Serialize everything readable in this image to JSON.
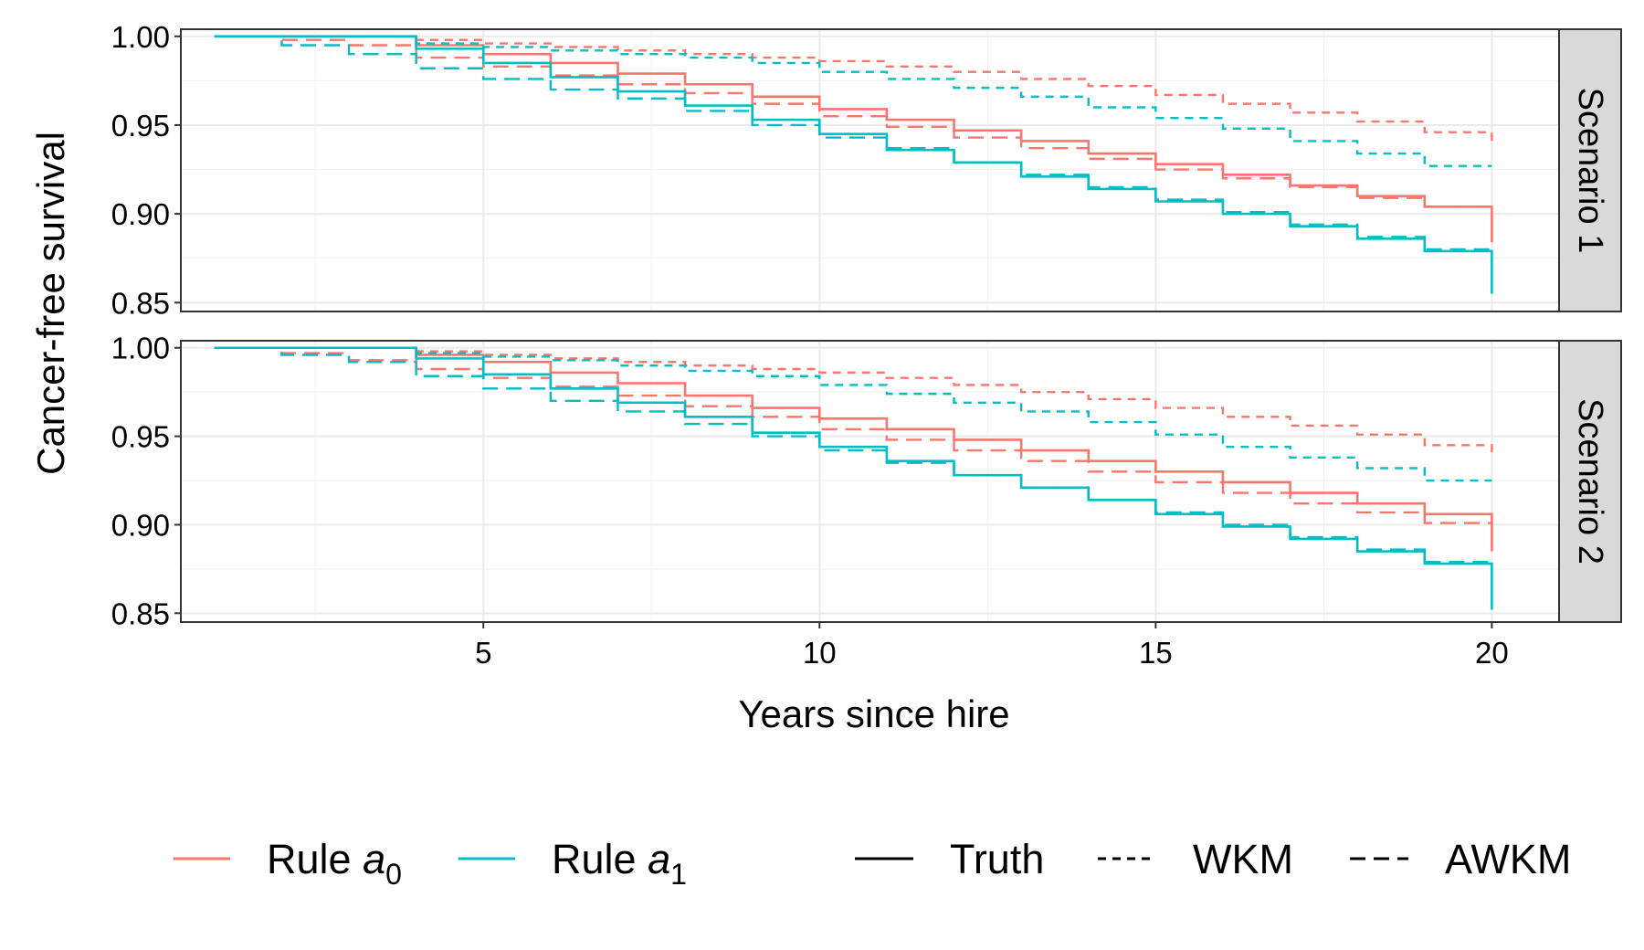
{
  "chart_data": {
    "type": "line",
    "step": true,
    "xlabel": "Years since hire",
    "ylabel": "Cancer-free survival",
    "xlim": [
      0.5,
      21
    ],
    "ylim": [
      0.845,
      1.004
    ],
    "xticks": [
      5,
      10,
      15,
      20
    ],
    "yticks": [
      0.85,
      0.9,
      0.95,
      1.0
    ],
    "ytick_labels": [
      "0.85",
      "0.90",
      "0.95",
      "1.00"
    ],
    "grid": true,
    "colors": {
      "rule_a0": "#F8766D",
      "rule_a1": "#00BFC4"
    },
    "x": [
      1,
      2,
      3,
      4,
      5,
      6,
      7,
      8,
      9,
      10,
      11,
      12,
      13,
      14,
      15,
      16,
      17,
      18,
      19,
      20
    ],
    "legend": {
      "position": "bottom",
      "color_items": [
        {
          "key": "rule_a0",
          "label_base": "Rule ",
          "label_var": "a",
          "label_sub": "0"
        },
        {
          "key": "rule_a1",
          "label_base": "Rule ",
          "label_var": "a",
          "label_sub": "1"
        }
      ],
      "linetype_items": [
        {
          "key": "truth",
          "label": "Truth",
          "dash": "solid"
        },
        {
          "key": "wkm",
          "label": "WKM",
          "dash": "dotted"
        },
        {
          "key": "awkm",
          "label": "AWKM",
          "dash": "dashed"
        }
      ]
    },
    "panels": [
      {
        "label": "Scenario 1",
        "end_values": {
          "rule_a0_truth": 0.884,
          "rule_a1_truth": 0.855
        },
        "series": [
          {
            "rule": "rule_a0",
            "method": "truth",
            "values": [
              1.0,
              1.0,
              1.0,
              0.995,
              0.99,
              0.985,
              0.979,
              0.973,
              0.966,
              0.959,
              0.953,
              0.947,
              0.941,
              0.934,
              0.928,
              0.922,
              0.916,
              0.91,
              0.904,
              0.904
            ]
          },
          {
            "rule": "rule_a0",
            "method": "wkm",
            "values": [
              1.0,
              1.0,
              1.0,
              0.998,
              0.996,
              0.994,
              0.992,
              0.99,
              0.988,
              0.986,
              0.983,
              0.98,
              0.976,
              0.972,
              0.967,
              0.962,
              0.957,
              0.952,
              0.946,
              0.941
            ]
          },
          {
            "rule": "rule_a0",
            "method": "awkm",
            "values": [
              1.0,
              0.998,
              0.995,
              0.988,
              0.983,
              0.978,
              0.973,
              0.968,
              0.962,
              0.955,
              0.949,
              0.943,
              0.937,
              0.931,
              0.925,
              0.92,
              0.915,
              0.909,
              0.904,
              0.903
            ]
          },
          {
            "rule": "rule_a1",
            "method": "truth",
            "values": [
              1.0,
              1.0,
              1.0,
              0.993,
              0.985,
              0.977,
              0.969,
              0.961,
              0.953,
              0.945,
              0.936,
              0.929,
              0.921,
              0.914,
              0.907,
              0.9,
              0.893,
              0.886,
              0.879,
              0.879
            ]
          },
          {
            "rule": "rule_a1",
            "method": "wkm",
            "values": [
              1.0,
              1.0,
              1.0,
              0.996,
              0.994,
              0.992,
              0.99,
              0.988,
              0.985,
              0.98,
              0.976,
              0.971,
              0.966,
              0.96,
              0.954,
              0.948,
              0.941,
              0.934,
              0.927,
              0.927
            ]
          },
          {
            "rule": "rule_a1",
            "method": "awkm",
            "values": [
              1.0,
              0.995,
              0.99,
              0.982,
              0.976,
              0.97,
              0.965,
              0.958,
              0.95,
              0.943,
              0.937,
              0.929,
              0.922,
              0.915,
              0.908,
              0.901,
              0.894,
              0.887,
              0.88,
              0.879
            ]
          }
        ]
      },
      {
        "label": "Scenario 2",
        "end_values": {
          "rule_a0_truth": 0.885,
          "rule_a1_truth": 0.852
        },
        "series": [
          {
            "rule": "rule_a0",
            "method": "truth",
            "values": [
              1.0,
              1.0,
              1.0,
              0.996,
              0.992,
              0.986,
              0.98,
              0.973,
              0.966,
              0.96,
              0.954,
              0.948,
              0.942,
              0.936,
              0.93,
              0.924,
              0.918,
              0.912,
              0.906,
              0.906
            ]
          },
          {
            "rule": "rule_a0",
            "method": "wkm",
            "values": [
              1.0,
              1.0,
              1.0,
              0.998,
              0.996,
              0.994,
              0.992,
              0.99,
              0.988,
              0.986,
              0.983,
              0.979,
              0.975,
              0.971,
              0.966,
              0.961,
              0.956,
              0.951,
              0.945,
              0.939
            ]
          },
          {
            "rule": "rule_a0",
            "method": "awkm",
            "values": [
              1.0,
              0.997,
              0.993,
              0.988,
              0.983,
              0.978,
              0.973,
              0.967,
              0.961,
              0.954,
              0.948,
              0.942,
              0.936,
              0.93,
              0.924,
              0.918,
              0.912,
              0.907,
              0.901,
              0.9
            ]
          },
          {
            "rule": "rule_a1",
            "method": "truth",
            "values": [
              1.0,
              1.0,
              1.0,
              0.994,
              0.985,
              0.977,
              0.969,
              0.961,
              0.952,
              0.944,
              0.936,
              0.928,
              0.921,
              0.914,
              0.906,
              0.899,
              0.892,
              0.885,
              0.878,
              0.878
            ]
          },
          {
            "rule": "rule_a1",
            "method": "wkm",
            "values": [
              1.0,
              1.0,
              1.0,
              0.997,
              0.995,
              0.993,
              0.99,
              0.987,
              0.984,
              0.979,
              0.974,
              0.969,
              0.964,
              0.958,
              0.951,
              0.944,
              0.938,
              0.932,
              0.925,
              0.925
            ]
          },
          {
            "rule": "rule_a1",
            "method": "awkm",
            "values": [
              1.0,
              0.996,
              0.992,
              0.984,
              0.977,
              0.97,
              0.964,
              0.957,
              0.95,
              0.942,
              0.935,
              0.928,
              0.921,
              0.914,
              0.907,
              0.9,
              0.893,
              0.886,
              0.879,
              0.878
            ]
          }
        ]
      }
    ]
  }
}
